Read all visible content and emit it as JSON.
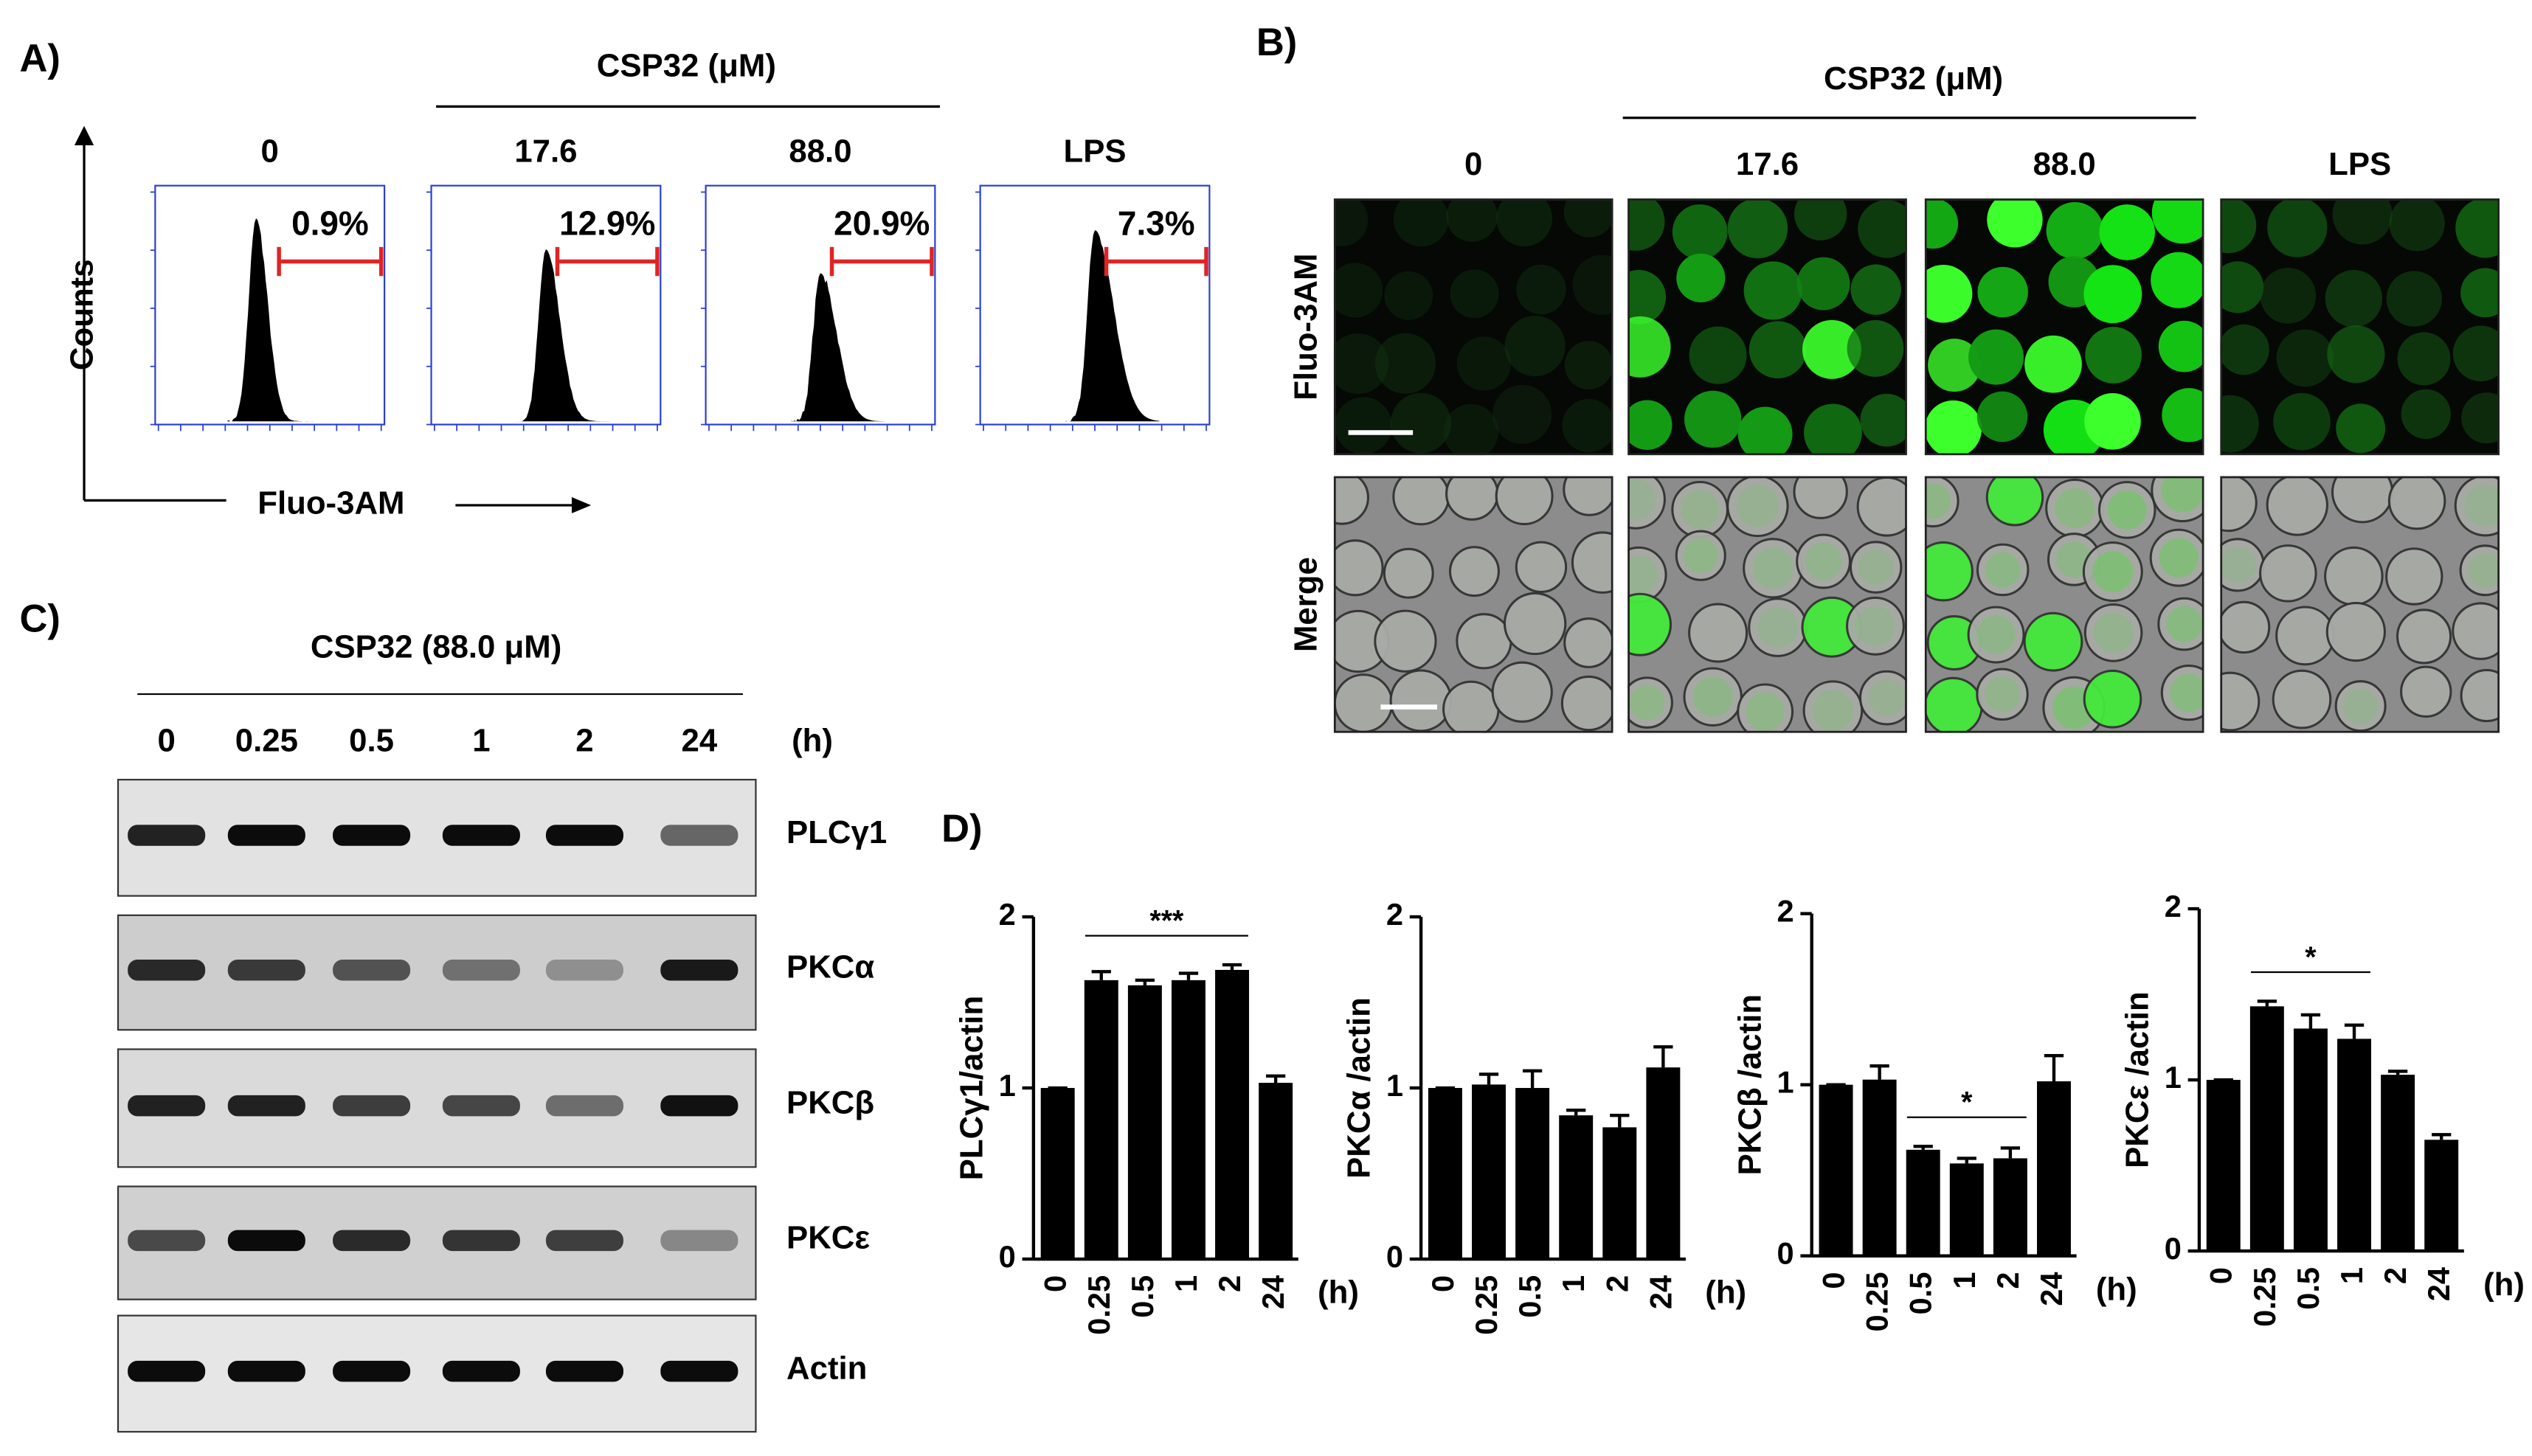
{
  "panel_a": {
    "label": "A)",
    "group_label": "CSP32 (μM)",
    "y_axis": "Counts",
    "x_axis": "Fluo-3AM",
    "plots": [
      {
        "title": "0",
        "gate": "0.9%"
      },
      {
        "title": "17.6",
        "gate": "12.9%"
      },
      {
        "title": "88.0",
        "gate": "20.9%"
      },
      {
        "title": "LPS",
        "gate": "7.3%"
      }
    ]
  },
  "panel_b": {
    "label": "B)",
    "group_label": "CSP32 (μM)",
    "columns": [
      "0",
      "17.6",
      "88.0",
      "LPS"
    ],
    "rows": [
      "Fluo-3AM",
      "Merge"
    ]
  },
  "panel_c": {
    "label": "C)",
    "treatment": "CSP32 (88.0 μM)",
    "lanes": [
      "0",
      "0.25",
      "0.5",
      "1",
      "2",
      "24"
    ],
    "unit": "(h)",
    "blots": [
      "PLCγ1",
      "PKCα",
      "PKCβ",
      "PKCε",
      "Actin"
    ]
  },
  "panel_d_label": "D)",
  "chart_data": [
    {
      "type": "bar",
      "y_label": "PLCγ1/actin",
      "categories": [
        "0",
        "0.25",
        "0.5",
        "1",
        "2",
        "24"
      ],
      "x_unit": "(h)",
      "values": [
        1,
        1.63,
        1.6,
        1.63,
        1.69,
        1.03
      ],
      "errors": [
        0,
        0.05,
        0.03,
        0.04,
        0.03,
        0.04
      ],
      "color": "#000000",
      "ylim": [
        0,
        2
      ],
      "yticks": [
        0,
        1,
        2
      ],
      "significance": {
        "label": "***",
        "from": "0.25",
        "to": "2"
      }
    },
    {
      "type": "bar",
      "y_label": "PKCα /actin",
      "categories": [
        "0",
        "0.25",
        "0.5",
        "1",
        "2",
        "24"
      ],
      "x_unit": "(h)",
      "values": [
        1,
        1.02,
        1.0,
        0.84,
        0.77,
        1.12
      ],
      "errors": [
        0,
        0.06,
        0.1,
        0.03,
        0.07,
        0.12
      ],
      "color": "#000000",
      "ylim": [
        0,
        2
      ],
      "yticks": [
        0,
        1,
        2
      ]
    },
    {
      "type": "bar",
      "y_label": "PKCβ /actin",
      "categories": [
        "0",
        "0.25",
        "0.5",
        "1",
        "2",
        "24"
      ],
      "x_unit": "(h)",
      "values": [
        1,
        1.03,
        0.62,
        0.54,
        0.57,
        1.02
      ],
      "errors": [
        0,
        0.08,
        0.02,
        0.03,
        0.06,
        0.15
      ],
      "color": "#000000",
      "ylim": [
        0,
        2
      ],
      "yticks": [
        0,
        1,
        2
      ],
      "significance": {
        "label": "*",
        "from": "0.5",
        "to": "2"
      }
    },
    {
      "type": "bar",
      "y_label": "PKCε /actin",
      "categories": [
        "0",
        "0.25",
        "0.5",
        "1",
        "2",
        "24"
      ],
      "x_unit": "(h)",
      "values": [
        1,
        1.43,
        1.3,
        1.24,
        1.03,
        0.65
      ],
      "errors": [
        0,
        0.03,
        0.08,
        0.08,
        0.02,
        0.03
      ],
      "color": "#000000",
      "ylim": [
        0,
        2
      ],
      "yticks": [
        0,
        1,
        2
      ],
      "significance": {
        "label": "*",
        "from": "0.25",
        "to": "1"
      }
    }
  ]
}
